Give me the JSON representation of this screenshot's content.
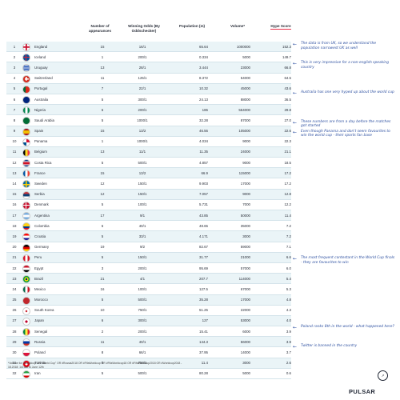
{
  "headers": {
    "appearances": "Number of appearances",
    "odds": "Winning Odds (By Oddschecker)",
    "population": "Population (m)",
    "volume": "Volume*",
    "hype": "Hype Score"
  },
  "rows": [
    {
      "rank": "1",
      "country": "England",
      "appearances": "15",
      "odds": "16/1",
      "population": "65.64",
      "volume": "1000000",
      "hype": "152.3",
      "flag": "england"
    },
    {
      "rank": "2",
      "country": "Iceland",
      "appearances": "1",
      "odds": "200/1",
      "population": "0.334",
      "volume": "5000",
      "hype": "149.7",
      "flag": "iceland"
    },
    {
      "rank": "3",
      "country": "Uruguay",
      "appearances": "13",
      "odds": "28/1",
      "population": "3.444",
      "volume": "23000",
      "hype": "66.8",
      "flag": "uruguay"
    },
    {
      "rank": "4",
      "country": "Switzerland",
      "appearances": "11",
      "odds": "125/1",
      "population": "8.372",
      "volume": "54000",
      "volume2": "",
      "hype": "64.5",
      "flag": "switzerland"
    },
    {
      "rank": "5",
      "country": "Portugal",
      "appearances": "7",
      "odds": "22/1",
      "population": "10.32",
      "volume": "45000",
      "hype": "43.6",
      "flag": "portugal"
    },
    {
      "rank": "6",
      "country": "Australia",
      "appearances": "5",
      "odds": "300/1",
      "population": "24.13",
      "volume": "88000",
      "hype": "36.5",
      "flag": "australia"
    },
    {
      "rank": "7",
      "country": "Nigeria",
      "appearances": "6",
      "odds": "200/1",
      "population": "186",
      "volume": "554000",
      "hype": "29.8",
      "flag": "nigeria"
    },
    {
      "rank": "8",
      "country": "Saudi Arabia",
      "appearances": "5",
      "odds": "1000/1",
      "population": "32.28",
      "volume": "87000",
      "hype": "27.0",
      "flag": "saudi"
    },
    {
      "rank": "9",
      "country": "Spain",
      "appearances": "15",
      "odds": "13/2",
      "population": "46.56",
      "volume": "105000",
      "hype": "22.6",
      "flag": "spain"
    },
    {
      "rank": "10",
      "country": "Panama",
      "appearances": "1",
      "odds": "1000/1",
      "population": "4.034",
      "volume": "9000",
      "hype": "22.3",
      "flag": "panama"
    },
    {
      "rank": "11",
      "country": "Belgium",
      "appearances": "13",
      "odds": "11/1",
      "population": "11.35",
      "volume": "24000",
      "hype": "21.1",
      "flag": "belgium"
    },
    {
      "rank": "12",
      "country": "Costa Rica",
      "appearances": "5",
      "odds": "500/1",
      "population": "4.857",
      "volume": "9000",
      "hype": "18.5",
      "flag": "costarica"
    },
    {
      "rank": "13",
      "country": "France",
      "appearances": "15",
      "odds": "13/2",
      "population": "66.9",
      "volume": "115000",
      "hype": "17.2",
      "flag": "france"
    },
    {
      "rank": "14",
      "country": "Sweden",
      "appearances": "12",
      "odds": "150/1",
      "population": "9.903",
      "volume": "17000",
      "hype": "17.2",
      "flag": "sweden"
    },
    {
      "rank": "15",
      "country": "Serbia",
      "appearances": "12",
      "odds": "150/1",
      "population": "7.057",
      "volume": "9000",
      "hype": "12.8",
      "flag": "serbia"
    },
    {
      "rank": "16",
      "country": "Denmark",
      "appearances": "5",
      "odds": "100/1",
      "population": "5.731",
      "volume": "7000",
      "hype": "12.2",
      "flag": "denmark"
    },
    {
      "rank": "17",
      "country": "Argentina",
      "appearances": "17",
      "odds": "9/1",
      "population": "43.85",
      "volume": "50000",
      "hype": "11.4",
      "flag": "argentina"
    },
    {
      "rank": "18",
      "country": "Colombia",
      "appearances": "6",
      "odds": "40/1",
      "population": "48.65",
      "volume": "35000",
      "hype": "7.2",
      "flag": "colombia"
    },
    {
      "rank": "19",
      "country": "Croatia",
      "appearances": "5",
      "odds": "33/1",
      "population": "4.171",
      "volume": "3000",
      "hype": "7.2",
      "flag": "croatia"
    },
    {
      "rank": "20",
      "country": "Germany",
      "appearances": "19",
      "odds": "9/2",
      "population": "82.67",
      "volume": "59000",
      "hype": "7.1",
      "flag": "germany"
    },
    {
      "rank": "21",
      "country": "Peru",
      "appearances": "5",
      "odds": "150/1",
      "population": "31.77",
      "population2": "",
      "volume": "21000",
      "hype": "6.6",
      "flag": "peru"
    },
    {
      "rank": "22",
      "country": "Egypt",
      "appearances": "3",
      "odds": "200/1",
      "population": "95.69",
      "volume": "57000",
      "hype": "6.0",
      "flag": "egypt"
    },
    {
      "rank": "23",
      "country": "Brazil",
      "appearances": "21",
      "odds": "4/1",
      "population": "207.7",
      "volume": "114000",
      "hype": "5.4",
      "flag": "brazil"
    },
    {
      "rank": "24",
      "country": "Mexico",
      "appearances": "16",
      "odds": "100/1",
      "population": "127.5",
      "volume": "67000",
      "hype": "5.3",
      "flag": "mexico"
    },
    {
      "rank": "25",
      "country": "Morocco",
      "appearances": "5",
      "odds": "500/1",
      "population": "35.28",
      "volume": "17000",
      "hype": "4.8",
      "flag": "morocco"
    },
    {
      "rank": "26",
      "country": "South Korea",
      "appearances": "10",
      "odds": "750/1",
      "population": "51.25",
      "volume": "22000",
      "hype": "4.3",
      "flag": "korea"
    },
    {
      "rank": "27",
      "country": "Japan",
      "appearances": "6",
      "odds": "300/1",
      "population": "127",
      "volume": "53000",
      "hype": "4.0",
      "flag": "japan"
    },
    {
      "rank": "28",
      "country": "Senegal",
      "appearances": "2",
      "odds": "200/1",
      "population": "15.41",
      "volume": "6000",
      "hype": "3.9",
      "flag": "senegal"
    },
    {
      "rank": "29",
      "country": "Russia",
      "appearances": "11",
      "odds": "40/1",
      "population": "144.3",
      "volume": "56000",
      "hype": "3.9",
      "flag": "russia"
    },
    {
      "rank": "30",
      "country": "Poland",
      "appearances": "8",
      "odds": "66/1",
      "population": "37.95",
      "volume": "14000",
      "hype": "3.7",
      "flag": "poland"
    },
    {
      "rank": "31",
      "country": "Tunisia",
      "appearances": "5",
      "odds": "750/1",
      "population": "11.4",
      "volume": "3000",
      "hype": "2.6",
      "flag": "tunisia"
    },
    {
      "rank": "32",
      "country": "Iran",
      "appearances": "5",
      "odds": "500/1",
      "population": "80.28",
      "volume": "5000",
      "hype": "0.6",
      "flag": "iran"
    }
  ],
  "notes": [
    {
      "row": 1,
      "text": "The data is from UK, so we understand the population narrowest UK as well"
    },
    {
      "row": 3,
      "text": "This is very impressive for a non-english speaking country"
    },
    {
      "row": 6,
      "text": "Australia has one very hyped up about the world cup"
    },
    {
      "row": 9,
      "text": "These numbers are from a day before the matches got started"
    },
    {
      "row": 10,
      "text": "Even though Panama and don't seem favourites to win the world cup - their sports fan base"
    },
    {
      "row": 23,
      "text": "The most frequent contestant in the World Cup finals - they are favourites to win"
    },
    {
      "row": 30,
      "text": "Poland ranks 8th in the world - what happened here?"
    },
    {
      "row": 32,
      "text": "Twitter is banned in the country"
    }
  ],
  "footnote": "*Volume for: #worldcup OR \"World Cup\" OR #Russia2018 OR #FifaWorldcup OR #FifaWorldcup18 OR #FifaWorldcup2018 OR #Worldcup2018 - 18.2018: 1st Jan to June 12th",
  "brand": "PULSAR"
}
